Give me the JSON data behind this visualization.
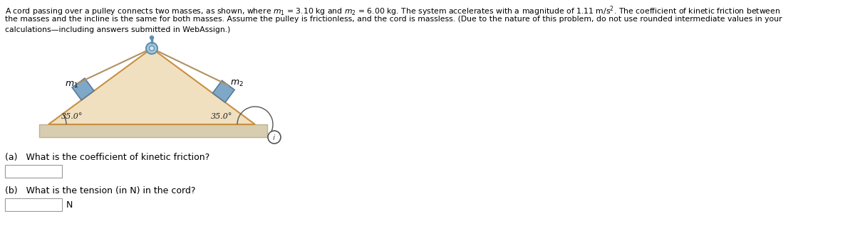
{
  "angle_label": "35.0°",
  "m1_label": "$m_1$",
  "m2_label": "$m_2$",
  "qa_label": "(a)   What is the coefficient of kinetic friction?",
  "qb_label": "(b)   What is the tension (in N) in the cord?",
  "n_label": "N",
  "bg_color": "#ffffff",
  "incline_fill": "#f0e0c0",
  "incline_edge": "#c89040",
  "ground_fill": "#d8cdb0",
  "ground_edge": "#c0b090",
  "block_fill": "#7fa8c8",
  "block_edge": "#5a7a9a",
  "pulley_fill": "#a8c8d8",
  "pulley_edge": "#6090b0",
  "pulley_inner_fill": "#d0e8f0",
  "cord_color": "#b09060",
  "text_color": "#000000",
  "angle_color": "#555555",
  "info_color": "#555555",
  "title_line1": "A cord passing over a pulley connects two masses, as shown, where $m_1$ = 3.10 kg and $m_2$ = 6.00 kg. The system accelerates with a magnitude of 1.11 m/s$^2$. The coefficient of kinetic friction between",
  "title_line2": "the masses and the incline is the same for both masses. Assume the pulley is frictionless, and the cord is massless. (Due to the nature of this problem, do not use rounded intermediate values in your",
  "title_line3": "calculations—including answers submitted in WebAssign.)",
  "fig_width": 12.0,
  "fig_height": 3.18,
  "dpi": 100
}
